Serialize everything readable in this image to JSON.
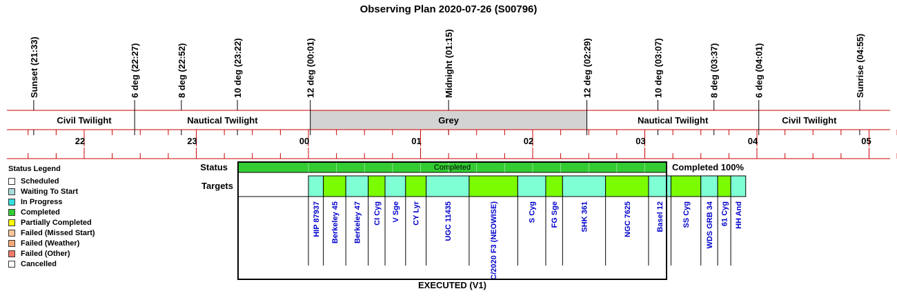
{
  "title": "Observing Plan 2020-07-26 (S00796)",
  "events": [
    {
      "label": "Sunset (21:33)",
      "time": "21:33"
    },
    {
      "label": "6 deg (22:27)",
      "time": "22:27"
    },
    {
      "label": "8 deg (22:52)",
      "time": "22:52"
    },
    {
      "label": "10 deg (23:22)",
      "time": "23:22"
    },
    {
      "label": "12 deg (00:01)",
      "time": "00:01"
    },
    {
      "label": "Midnight (01:15)",
      "time": "01:15"
    },
    {
      "label": "12 deg (02:29)",
      "time": "02:29"
    },
    {
      "label": "10 deg (03:07)",
      "time": "03:07"
    },
    {
      "label": "8 deg (03:37)",
      "time": "03:37"
    },
    {
      "label": "6 deg (04:01)",
      "time": "04:01"
    },
    {
      "label": "Sunrise (04:55)",
      "time": "04:55"
    }
  ],
  "phases": [
    {
      "label": "Civil Twilight",
      "start": "21:33",
      "end": "22:27",
      "color": "#ffffff"
    },
    {
      "label": "Nautical Twilight",
      "start": "22:27",
      "end": "00:01",
      "color": "#ffffff"
    },
    {
      "label": "Grey",
      "start": "00:01",
      "end": "02:29",
      "color": "#d3d3d3"
    },
    {
      "label": "Nautical Twilight",
      "start": "02:29",
      "end": "04:01",
      "color": "#ffffff"
    },
    {
      "label": "Civil Twilight",
      "start": "04:01",
      "end": "04:55",
      "color": "#ffffff"
    }
  ],
  "hour_ticks": [
    "22",
    "23",
    "00",
    "01",
    "02",
    "03",
    "04",
    "05"
  ],
  "legend": {
    "title": "Status Legend",
    "items": [
      {
        "label": "Scheduled",
        "color": "#ffffff"
      },
      {
        "label": "Waiting To Start",
        "color": "#a8dcd8"
      },
      {
        "label": "In Progress",
        "color": "#33e0e0"
      },
      {
        "label": "Completed",
        "color": "#33cc33"
      },
      {
        "label": "Partially Completed",
        "color": "#ffff00"
      },
      {
        "label": "Failed (Missed Start)",
        "color": "#ffc89a"
      },
      {
        "label": "Failed (Weather)",
        "color": "#f5a97a"
      },
      {
        "label": "Failed (Other)",
        "color": "#f47a6a"
      },
      {
        "label": "Cancelled",
        "color": "#ffffff"
      }
    ]
  },
  "status_row": {
    "label": "Status",
    "text": "Completed",
    "color": "#33cc33",
    "start": "00:00",
    "end": "04:11"
  },
  "status_summary": "Completed 100%",
  "targets_label": "Targets",
  "executed_label": "EXECUTED (V1)",
  "target_colors": {
    "a": "#7fffd4",
    "b": "#7cfc00"
  },
  "chart_data": {
    "type": "timeline",
    "x_axis": "time of night (hours)",
    "xlim": [
      "21:20",
      "05:15"
    ],
    "targets": [
      {
        "name": "HIP 87937",
        "start": "00:00",
        "end": "00:08",
        "color": "#7fffd4"
      },
      {
        "name": "Berkeley 45",
        "start": "00:08",
        "end": "00:20",
        "color": "#7cfc00"
      },
      {
        "name": "Berkeley 47",
        "start": "00:20",
        "end": "00:32",
        "color": "#7fffd4"
      },
      {
        "name": "CI Cyg",
        "start": "00:32",
        "end": "00:41",
        "color": "#7cfc00"
      },
      {
        "name": "V Sge",
        "start": "00:41",
        "end": "00:52",
        "color": "#7fffd4"
      },
      {
        "name": "CY Lyr",
        "start": "00:52",
        "end": "01:03",
        "color": "#7cfc00"
      },
      {
        "name": "UGC 11435",
        "start": "01:03",
        "end": "01:26",
        "color": "#7fffd4"
      },
      {
        "name": "C/2020 F3 (NEOWISE)",
        "start": "01:26",
        "end": "01:52",
        "color": "#7cfc00"
      },
      {
        "name": "S Cyg",
        "start": "01:52",
        "end": "02:07",
        "color": "#7fffd4"
      },
      {
        "name": "FG Sge",
        "start": "02:07",
        "end": "02:16",
        "color": "#7cfc00"
      },
      {
        "name": "SHK 361",
        "start": "02:16",
        "end": "02:39",
        "color": "#7fffd4"
      },
      {
        "name": "NGC 7625",
        "start": "02:39",
        "end": "03:02",
        "color": "#7cfc00"
      },
      {
        "name": "Basel 12",
        "start": "03:02",
        "end": "03:14",
        "color": "#7fffd4"
      },
      {
        "name": "SS Cyg",
        "start": "03:14",
        "end": "03:30",
        "color": "#7cfc00"
      },
      {
        "name": "WDS GRB 34",
        "start": "03:30",
        "end": "03:39",
        "color": "#7fffd4"
      },
      {
        "name": "61 Cyg",
        "start": "03:39",
        "end": "03:46",
        "color": "#7cfc00"
      },
      {
        "name": "HH And",
        "start": "03:46",
        "end": "03:54",
        "color": "#7fffd4"
      }
    ]
  }
}
